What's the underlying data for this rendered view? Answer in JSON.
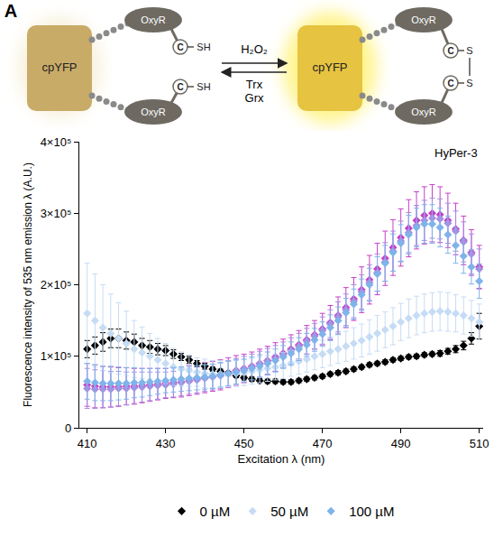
{
  "panel": "A",
  "diagram": {
    "left": {
      "protein": "cpYFP",
      "domain": "OxyR",
      "cysteine": "C",
      "thiol": "SH"
    },
    "arrow": {
      "forward": "H₂O₂",
      "reverse": [
        "Trx",
        "Grx"
      ]
    },
    "right": {
      "protein": "cpYFP",
      "domain": "OxyR",
      "cysteine": "C",
      "disulfide": "S"
    }
  },
  "chart_data": {
    "type": "scatter",
    "title": "HyPer-3",
    "x_label": "Excitation λ (nm)",
    "y_label": "Fluorescence intensity of 535 nm emission λ (A.U.)",
    "x": [
      410,
      412,
      414,
      416,
      418,
      420,
      422,
      424,
      426,
      428,
      430,
      432,
      434,
      436,
      438,
      440,
      442,
      444,
      446,
      448,
      450,
      452,
      454,
      456,
      458,
      460,
      462,
      464,
      466,
      468,
      470,
      472,
      474,
      476,
      478,
      480,
      482,
      484,
      486,
      488,
      490,
      492,
      494,
      496,
      498,
      500,
      502,
      504,
      506,
      508,
      510
    ],
    "xlim": [
      408,
      511
    ],
    "xticks": [
      410,
      430,
      450,
      470,
      490,
      510
    ],
    "ylim": [
      0,
      400000
    ],
    "yticks": [
      0,
      {
        "value": 100000,
        "label": "1×10⁵"
      },
      {
        "value": 200000,
        "label": "2×10⁵"
      },
      {
        "value": 300000,
        "label": "3×10⁵"
      },
      {
        "value": 400000,
        "label": "4×10⁵"
      }
    ],
    "grid": false,
    "legend": "bottom",
    "marker": "diamond",
    "series": [
      {
        "color": "#c83fc8",
        "values": [
          60000,
          58000,
          57000,
          57000,
          57000,
          58000,
          58000,
          59000,
          60000,
          61000,
          62000,
          63000,
          64000,
          66000,
          68000,
          70000,
          72000,
          74000,
          77000,
          80000,
          83000,
          86000,
          90000,
          94000,
          99000,
          104000,
          110000,
          116000,
          123000,
          130000,
          138000,
          147000,
          157000,
          168000,
          180000,
          193000,
          207000,
          222000,
          237000,
          252000,
          266000,
          279000,
          290000,
          297000,
          300000,
          298000,
          290000,
          278000,
          262000,
          245000,
          225000
        ],
        "errors": [
          30000,
          30000,
          29000,
          28000,
          27000,
          26000,
          25000,
          24000,
          23000,
          22000,
          21000,
          21000,
          21000,
          21000,
          21000,
          21000,
          21000,
          21000,
          21000,
          21000,
          20000,
          20000,
          20000,
          20000,
          20000,
          20000,
          20000,
          20000,
          20000,
          20000,
          22000,
          24000,
          26000,
          28000,
          30000,
          32000,
          34000,
          36000,
          38000,
          39000,
          40000,
          40000,
          40000,
          40000,
          40000,
          39000,
          38000,
          36000,
          34000,
          32000,
          30000
        ]
      },
      {
        "color": "#a98be0",
        "values": [
          55000,
          54000,
          54000,
          54000,
          55000,
          55000,
          56000,
          57000,
          58000,
          59000,
          60000,
          61000,
          63000,
          65000,
          67000,
          69000,
          71000,
          73000,
          76000,
          79000,
          82000,
          85000,
          89000,
          93000,
          97000,
          102000,
          108000,
          114000,
          121000,
          128000,
          136000,
          145000,
          155000,
          165000,
          177000,
          190000,
          203000,
          217000,
          232000,
          247000,
          261000,
          273000,
          283000,
          290000,
          293000,
          292000,
          286000,
          275000,
          260000,
          243000,
          222000
        ],
        "errors": [
          28000,
          27000,
          26000,
          25000,
          24000,
          23000,
          22000,
          21000,
          20000,
          19000,
          18000,
          18000,
          18000,
          18000,
          18000,
          18000,
          18000,
          18000,
          18000,
          18000,
          18000,
          18000,
          18000,
          18000,
          18000,
          18000,
          18000,
          18000,
          18000,
          18000,
          19000,
          20000,
          21000,
          22000,
          23000,
          24000,
          25000,
          26000,
          27000,
          28000,
          28000,
          28000,
          28000,
          28000,
          28000,
          28000,
          28000,
          28000,
          28000,
          28000,
          28000
        ]
      },
      {
        "name": "0 µM",
        "color": "#000000",
        "values": [
          110000,
          115000,
          120000,
          125000,
          125000,
          122000,
          120000,
          115000,
          113000,
          110000,
          108000,
          103000,
          99000,
          95000,
          90000,
          86000,
          82000,
          79000,
          76000,
          73000,
          70000,
          68000,
          66000,
          65000,
          65000,
          64000,
          64000,
          66000,
          68000,
          70000,
          72000,
          75000,
          77000,
          79000,
          82000,
          85000,
          88000,
          90000,
          92000,
          95000,
          97000,
          99000,
          100000,
          102000,
          103000,
          104000,
          107000,
          110000,
          115000,
          125000,
          142000
        ],
        "errors": [
          12000,
          12000,
          13000,
          13000,
          13000,
          12000,
          11000,
          10000,
          9000,
          8000,
          7000,
          6000,
          5000,
          5000,
          4000,
          4000,
          3000,
          3000,
          3000,
          3000,
          3000,
          3000,
          3000,
          3000,
          3000,
          3000,
          3000,
          3000,
          3000,
          3000,
          3000,
          3000,
          3000,
          3000,
          3000,
          3000,
          3000,
          3000,
          3000,
          3000,
          3000,
          3000,
          3000,
          3000,
          3000,
          4000,
          4000,
          5000,
          6000,
          8000,
          18000
        ]
      },
      {
        "name": "50 µM",
        "color": "#c6dcf5",
        "values": [
          160000,
          150000,
          140000,
          132000,
          125000,
          118000,
          110000,
          105000,
          100000,
          95000,
          90000,
          85000,
          82000,
          80000,
          78000,
          76000,
          75000,
          75000,
          75000,
          76000,
          77000,
          79000,
          81000,
          83000,
          85000,
          87000,
          90000,
          93000,
          96000,
          100000,
          103000,
          107000,
          110000,
          114000,
          118000,
          122000,
          127000,
          132000,
          137000,
          142000,
          148000,
          153000,
          157000,
          160000,
          162000,
          163000,
          162000,
          160000,
          157000,
          153000,
          148000
        ],
        "errors": [
          70000,
          65000,
          60000,
          55000,
          50000,
          45000,
          40000,
          36000,
          32000,
          30000,
          28000,
          26000,
          24000,
          22000,
          20000,
          20000,
          19000,
          19000,
          18000,
          18000,
          18000,
          18000,
          18000,
          18000,
          18000,
          18000,
          18000,
          18000,
          18000,
          19000,
          19000,
          20000,
          20000,
          21000,
          22000,
          23000,
          24000,
          25000,
          25000,
          26000,
          26000,
          27000,
          27000,
          27000,
          27000,
          27000,
          27000,
          26000,
          26000,
          25000,
          25000
        ]
      },
      {
        "name": "100 µM",
        "color": "#7fb3ea",
        "values": [
          65000,
          63000,
          62000,
          62000,
          62000,
          62000,
          63000,
          63000,
          64000,
          65000,
          66000,
          67000,
          68000,
          69000,
          70000,
          71000,
          72000,
          74000,
          76000,
          78000,
          80000,
          83000,
          86000,
          90000,
          94000,
          99000,
          104000,
          110000,
          116000,
          123000,
          131000,
          140000,
          150000,
          161000,
          173000,
          186000,
          200000,
          215000,
          230000,
          245000,
          258000,
          270000,
          280000,
          285000,
          285000,
          280000,
          270000,
          255000,
          240000,
          225000,
          205000
        ],
        "errors": [
          25000,
          25000,
          24000,
          24000,
          23000,
          22000,
          21000,
          20000,
          19000,
          18000,
          17000,
          17000,
          17000,
          17000,
          17000,
          17000,
          17000,
          17000,
          17000,
          17000,
          16000,
          16000,
          16000,
          16000,
          16000,
          16000,
          16000,
          16000,
          16000,
          16000,
          17000,
          18000,
          19000,
          20000,
          21000,
          22000,
          23000,
          24000,
          25000,
          26000,
          26000,
          27000,
          27000,
          27000,
          27000,
          27000,
          26000,
          25000,
          24000,
          24000,
          24000
        ]
      }
    ]
  }
}
